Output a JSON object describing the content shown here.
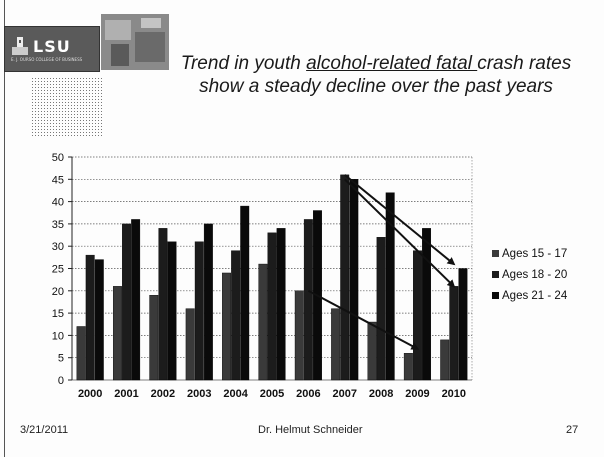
{
  "slide": {
    "logo_text": "LSU",
    "logo_subtext": "E. J. OURSO COLLEGE OF BUSINESS",
    "title_part1": "Trend in youth ",
    "title_underlined": "alcohol-related fatal ",
    "title_part2": "crash rates show a steady decline over the past years",
    "footer_date": "3/21/2011",
    "footer_author": "Dr. Helmut Schneider",
    "footer_page": "27"
  },
  "chart_data": {
    "type": "bar",
    "title": "Trend in youth alcohol-related fatal crash rates show a steady decline over the past years",
    "categories": [
      "2000",
      "2001",
      "2002",
      "2003",
      "2004",
      "2005",
      "2006",
      "2007",
      "2008",
      "2009",
      "2010"
    ],
    "series": [
      {
        "name": "Ages 15 - 17",
        "values": [
          12,
          21,
          19,
          16,
          24,
          26,
          20,
          16,
          13,
          6,
          9
        ],
        "color": "#3a3a3a"
      },
      {
        "name": "Ages 18 - 20",
        "values": [
          28,
          35,
          34,
          31,
          29,
          33,
          36,
          46,
          32,
          29,
          21
        ],
        "color": "#1c1c1c"
      },
      {
        "name": "Ages 21 - 24",
        "values": [
          27,
          36,
          31,
          35,
          39,
          34,
          38,
          45,
          42,
          34,
          25
        ],
        "color": "#0a0a0a"
      }
    ],
    "ylim": [
      0,
      50
    ],
    "yticks": [
      0,
      5,
      10,
      15,
      20,
      25,
      30,
      35,
      40,
      45,
      50
    ],
    "grid": true,
    "legend_position": "right",
    "trend_arrows": [
      {
        "from": [
          "2007",
          46
        ],
        "to": [
          "2010",
          26
        ]
      },
      {
        "from": [
          "2007",
          45
        ],
        "to": [
          "2010",
          21
        ]
      },
      {
        "from": [
          "2006",
          20
        ],
        "to": [
          "2009",
          7
        ]
      }
    ]
  }
}
